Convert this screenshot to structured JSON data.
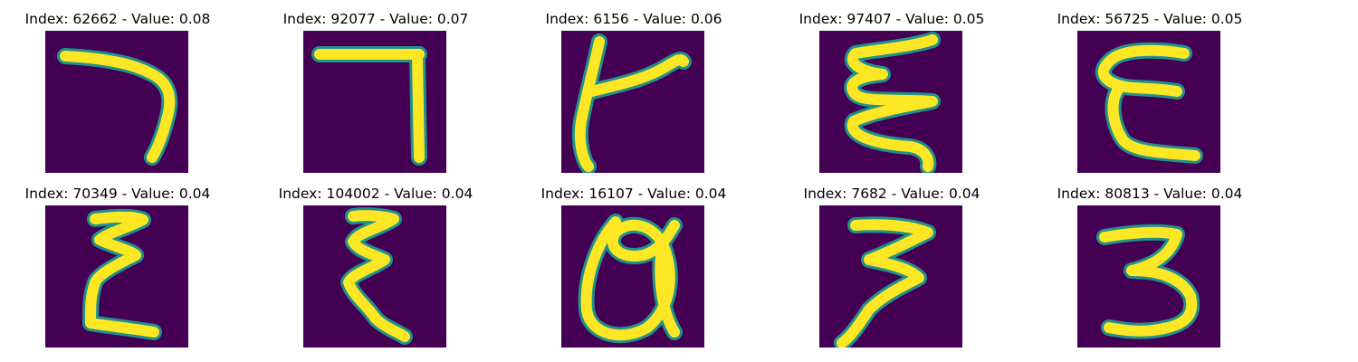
{
  "colors": {
    "background": "#440154",
    "mid": "#21918c",
    "highlight": "#fde725"
  },
  "panels": [
    {
      "title": "Index: 62662 - Value: 0.08",
      "glyph": "seven-bent-icon"
    },
    {
      "title": "Index: 92077 - Value: 0.07",
      "glyph": "seven-straight-icon"
    },
    {
      "title": "Index: 6156 - Value: 0.06",
      "glyph": "curly-t-icon"
    },
    {
      "title": "Index: 97407 - Value: 0.05",
      "glyph": "squiggle-e-icon"
    },
    {
      "title": "Index: 56725 - Value: 0.05",
      "glyph": "epsilon-icon"
    },
    {
      "title": "Index: 70349 - Value: 0.04",
      "glyph": "zigzag-e-icon"
    },
    {
      "title": "Index: 104002 - Value: 0.04",
      "glyph": "zigzag-xi-icon"
    },
    {
      "title": "Index: 16107 - Value: 0.04",
      "glyph": "loop-a-icon"
    },
    {
      "title": "Index: 7682 - Value: 0.04",
      "glyph": "slanted-three-icon"
    },
    {
      "title": "Index: 80813 - Value: 0.04",
      "glyph": "three-icon"
    }
  ]
}
